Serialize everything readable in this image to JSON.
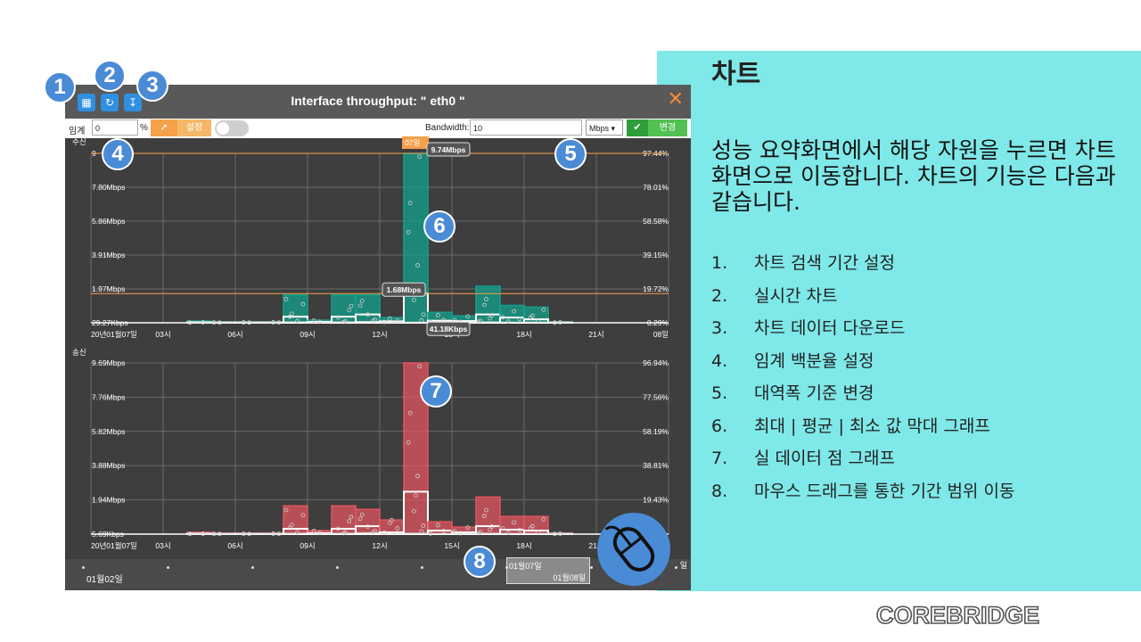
{
  "slide": {
    "title": "차트",
    "description": "성능 요약화면에서 해당 자원을 누르면 차트화면으로 이동합니다. 차트의 기능은 다음과 같습니다.",
    "features": [
      {
        "num": "1.",
        "text": "차트 검색 기간 설정"
      },
      {
        "num": "2.",
        "text": "실시간 차트"
      },
      {
        "num": "3.",
        "text": "차트 데이터 다운로드"
      },
      {
        "num": "4.",
        "text": "임계 백분율 설정"
      },
      {
        "num": "5.",
        "text": "대역폭 기준 변경"
      },
      {
        "num": "6.",
        "text": "최대 | 평균 | 최소 값 막대 그래프"
      },
      {
        "num": "7.",
        "text": "실 데이터 점 그래프"
      },
      {
        "num": "8.",
        "text": "마우스 드래그를 통한 기간 범위 이동"
      }
    ],
    "logo": "COREBRIDGE"
  },
  "callouts": [
    "1",
    "2",
    "3",
    "4",
    "5",
    "6",
    "7",
    "8"
  ],
  "window": {
    "title": "Interface throughput: \" eth0 \"",
    "toolbar_icons": [
      "calendar-icon",
      "refresh-icon",
      "download-icon"
    ],
    "close_icon": "close-icon",
    "threshold_label": "임계",
    "threshold_value": "0",
    "percent_label": "%",
    "set_label": "설정",
    "bandwidth_label": "Bandwidth:",
    "bandwidth_value": "10",
    "unit_selected": "Mbps",
    "change_label": "변경",
    "navigator": {
      "left_label": "01월02일",
      "range_start": "01월07일",
      "range_end": "01월08일",
      "right_label": "일"
    }
  },
  "colors": {
    "rx": "#13a08c",
    "tx": "#e25560",
    "threshold": "#f5a04a",
    "accent": "#4a8bd6",
    "panel": "#7fe8e8"
  },
  "chart_data": [
    {
      "type": "bar",
      "title": "수신",
      "x_tick_labels": [
        "20년01월07일",
        "03시",
        "06시",
        "09시",
        "12시",
        "15시",
        "18시",
        "21시",
        "08일"
      ],
      "y_left_labels": [
        "9",
        "7.80Mbps",
        "5.86Mbps",
        "3.91Mbps",
        "1.97Mbps",
        "29.27Kbps"
      ],
      "y_right_labels": [
        "97.44%",
        "78.01%",
        "58.58%",
        "39.15%",
        "19.72%",
        "0.29%"
      ],
      "ylim": [
        0,
        9.74
      ],
      "hours": [
        4,
        5,
        6,
        7,
        8,
        9,
        10,
        11,
        12,
        13,
        14,
        15,
        16,
        17,
        18,
        19
      ],
      "max": [
        0.1,
        0.05,
        0.05,
        0.05,
        1.6,
        0.15,
        1.6,
        1.6,
        0.3,
        9.74,
        0.6,
        0.4,
        2.1,
        1.0,
        0.9,
        0.05
      ],
      "avg": [
        0.03,
        0.02,
        0.02,
        0.02,
        0.35,
        0.05,
        0.35,
        0.48,
        0.08,
        1.68,
        0.12,
        0.1,
        0.48,
        0.3,
        0.2,
        0.02
      ],
      "min": [
        0.01,
        0.01,
        0.01,
        0.01,
        0.05,
        0.02,
        0.05,
        0.08,
        0.03,
        0.04,
        0.03,
        0.03,
        0.05,
        0.04,
        0.04,
        0.01
      ],
      "annotations": {
        "date_tag": "07일",
        "max_label": "9.74Mbps",
        "avg_label": "1.68Mbps",
        "min_label": "41.18Kbps"
      }
    },
    {
      "type": "bar",
      "title": "송신",
      "x_tick_labels": [
        "20년01월07일",
        "03시",
        "06시",
        "09시",
        "12시",
        "15시",
        "18시",
        "21시"
      ],
      "y_left_labels": [
        "9.69Mbps",
        "7.76Mbps",
        "5.82Mbps",
        "3.88Mbps",
        "1.94Mbps",
        "5.69Kbps"
      ],
      "y_right_labels": [
        "96.94%",
        "77.56%",
        "58.19%",
        "38.81%",
        "19.43%"
      ],
      "ylim": [
        0,
        9.69
      ],
      "hours": [
        4,
        5,
        6,
        7,
        8,
        9,
        10,
        11,
        12,
        13,
        14,
        15,
        16,
        17,
        18,
        19
      ],
      "max": [
        0.1,
        0.05,
        0.05,
        0.05,
        1.6,
        0.2,
        1.6,
        1.4,
        0.8,
        9.69,
        0.7,
        0.4,
        2.1,
        1.0,
        1.0,
        0.05
      ],
      "avg": [
        0.03,
        0.02,
        0.02,
        0.02,
        0.3,
        0.05,
        0.3,
        0.45,
        0.1,
        2.4,
        0.2,
        0.1,
        0.45,
        0.25,
        0.2,
        0.02
      ],
      "min": [
        0.01,
        0.01,
        0.01,
        0.01,
        0.05,
        0.02,
        0.05,
        0.08,
        0.03,
        0.05,
        0.03,
        0.03,
        0.05,
        0.04,
        0.04,
        0.01
      ]
    }
  ]
}
